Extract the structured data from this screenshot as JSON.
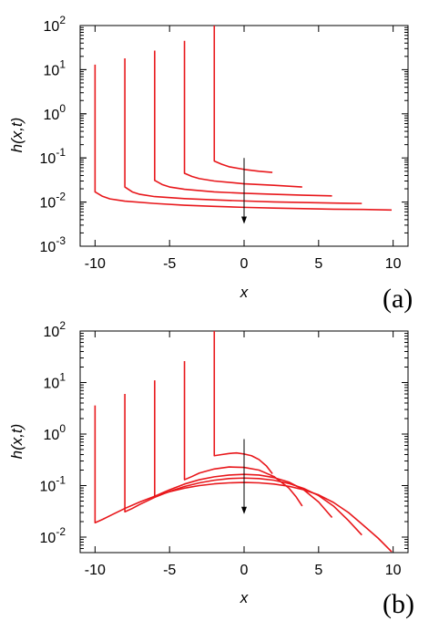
{
  "chart_data": [
    {
      "type": "line",
      "panel_label": "(a)",
      "xlabel": "x",
      "ylabel": "h(x,t)",
      "yscale": "log",
      "xlim": [
        -11,
        11
      ],
      "ylim": [
        0.001,
        100
      ],
      "xticks": [
        {
          "value": -10,
          "label": "-10"
        },
        {
          "value": -5,
          "label": "-5"
        },
        {
          "value": 0,
          "label": "0"
        },
        {
          "value": 5,
          "label": "5"
        },
        {
          "value": 10,
          "label": "10"
        }
      ],
      "yticks": [
        {
          "value": 100,
          "base": "10",
          "exp": "2"
        },
        {
          "value": 10,
          "base": "10",
          "exp": "1"
        },
        {
          "value": 1,
          "base": "10",
          "exp": "0"
        },
        {
          "value": 0.1,
          "base": "10",
          "exp": "-1"
        },
        {
          "value": 0.01,
          "base": "10",
          "exp": "-2"
        },
        {
          "value": 0.001,
          "base": "10",
          "exp": "-3"
        }
      ],
      "line_color": "#e8171b",
      "arrow": {
        "x": 0,
        "from": 0.1,
        "to": 0.0032
      },
      "series": [
        {
          "points": [
            [
              -2,
              100
            ],
            [
              -2,
              0.085
            ],
            [
              -1.5,
              0.072
            ],
            [
              -1,
              0.063
            ],
            [
              0,
              0.055
            ],
            [
              1,
              0.05
            ],
            [
              1.9,
              0.047
            ]
          ]
        },
        {
          "points": [
            [
              -4,
              45
            ],
            [
              -4,
              0.045
            ],
            [
              -3.5,
              0.038
            ],
            [
              -3,
              0.034
            ],
            [
              -2,
              0.03
            ],
            [
              0,
              0.026
            ],
            [
              2,
              0.024
            ],
            [
              3.9,
              0.022
            ]
          ]
        },
        {
          "points": [
            [
              -6,
              27
            ],
            [
              -6,
              0.031
            ],
            [
              -5.5,
              0.025
            ],
            [
              -5,
              0.022
            ],
            [
              -4,
              0.0195
            ],
            [
              -2,
              0.017
            ],
            [
              0,
              0.0158
            ],
            [
              2,
              0.015
            ],
            [
              4,
              0.0143
            ],
            [
              5.9,
              0.0138
            ]
          ]
        },
        {
          "points": [
            [
              -8,
              18
            ],
            [
              -8,
              0.022
            ],
            [
              -7.5,
              0.017
            ],
            [
              -7,
              0.015
            ],
            [
              -6,
              0.0133
            ],
            [
              -4,
              0.012
            ],
            [
              -2,
              0.0112
            ],
            [
              0,
              0.0106
            ],
            [
              2,
              0.0101
            ],
            [
              4,
              0.0098
            ],
            [
              6,
              0.0095
            ],
            [
              7.9,
              0.0093
            ]
          ]
        },
        {
          "points": [
            [
              -10,
              13
            ],
            [
              -10,
              0.017
            ],
            [
              -9.5,
              0.0135
            ],
            [
              -9,
              0.0118
            ],
            [
              -8,
              0.0105
            ],
            [
              -6,
              0.0093
            ],
            [
              -4,
              0.0085
            ],
            [
              -2,
              0.008
            ],
            [
              0,
              0.0076
            ],
            [
              2,
              0.0073
            ],
            [
              4,
              0.0071
            ],
            [
              6,
              0.0069
            ],
            [
              8,
              0.0068
            ],
            [
              9.9,
              0.0066
            ]
          ]
        }
      ]
    },
    {
      "type": "line",
      "panel_label": "(b)",
      "xlabel": "x",
      "ylabel": "h(x,t)",
      "yscale": "log",
      "xlim": [
        -11,
        11
      ],
      "ylim": [
        0.005,
        100
      ],
      "xticks": [
        {
          "value": -10,
          "label": "-10"
        },
        {
          "value": -5,
          "label": "-5"
        },
        {
          "value": 0,
          "label": "0"
        },
        {
          "value": 5,
          "label": "5"
        },
        {
          "value": 10,
          "label": "10"
        }
      ],
      "yticks": [
        {
          "value": 100,
          "base": "10",
          "exp": "2"
        },
        {
          "value": 10,
          "base": "10",
          "exp": "1"
        },
        {
          "value": 1,
          "base": "10",
          "exp": "0"
        },
        {
          "value": 0.1,
          "base": "10",
          "exp": "-1"
        },
        {
          "value": 0.01,
          "base": "10",
          "exp": "-2"
        }
      ],
      "line_color": "#e8171b",
      "arrow": {
        "x": 0,
        "from": 0.8,
        "to": 0.028
      },
      "series": [
        {
          "points": [
            [
              -2,
              100
            ],
            [
              -2,
              0.38
            ],
            [
              -1.5,
              0.4
            ],
            [
              -1,
              0.42
            ],
            [
              -0.5,
              0.43
            ],
            [
              0,
              0.41
            ],
            [
              0.5,
              0.38
            ],
            [
              1,
              0.32
            ],
            [
              1.5,
              0.24
            ],
            [
              1.9,
              0.17
            ]
          ]
        },
        {
          "points": [
            [
              -4,
              26
            ],
            [
              -4,
              0.13
            ],
            [
              -3.5,
              0.15
            ],
            [
              -3,
              0.175
            ],
            [
              -2,
              0.21
            ],
            [
              -1,
              0.23
            ],
            [
              0,
              0.225
            ],
            [
              1,
              0.2
            ],
            [
              2,
              0.15
            ],
            [
              3,
              0.09
            ],
            [
              3.5,
              0.06
            ],
            [
              3.9,
              0.04
            ]
          ]
        },
        {
          "points": [
            [
              -6,
              11
            ],
            [
              -6,
              0.062
            ],
            [
              -5.5,
              0.072
            ],
            [
              -5,
              0.083
            ],
            [
              -4,
              0.107
            ],
            [
              -3,
              0.13
            ],
            [
              -2,
              0.148
            ],
            [
              -1,
              0.16
            ],
            [
              0,
              0.165
            ],
            [
              1,
              0.16
            ],
            [
              2,
              0.143
            ],
            [
              3,
              0.117
            ],
            [
              4,
              0.083
            ],
            [
              5,
              0.048
            ],
            [
              5.9,
              0.024
            ]
          ]
        },
        {
          "points": [
            [
              -8,
              6
            ],
            [
              -8,
              0.031
            ],
            [
              -7.5,
              0.036
            ],
            [
              -7,
              0.043
            ],
            [
              -6,
              0.059
            ],
            [
              -5,
              0.077
            ],
            [
              -4,
              0.096
            ],
            [
              -3,
              0.113
            ],
            [
              -2,
              0.127
            ],
            [
              -1,
              0.137
            ],
            [
              0,
              0.14
            ],
            [
              1,
              0.137
            ],
            [
              2,
              0.127
            ],
            [
              3,
              0.11
            ],
            [
              4,
              0.088
            ],
            [
              5,
              0.064
            ],
            [
              6,
              0.04
            ],
            [
              7,
              0.021
            ],
            [
              7.9,
              0.011
            ]
          ]
        },
        {
          "points": [
            [
              -10,
              3.6
            ],
            [
              -10,
              0.019
            ],
            [
              -9.5,
              0.022
            ],
            [
              -9,
              0.026
            ],
            [
              -8,
              0.036
            ],
            [
              -7,
              0.048
            ],
            [
              -6,
              0.062
            ],
            [
              -5,
              0.076
            ],
            [
              -4,
              0.089
            ],
            [
              -3,
              0.1
            ],
            [
              -2,
              0.108
            ],
            [
              -1,
              0.113
            ],
            [
              0,
              0.115
            ],
            [
              1,
              0.113
            ],
            [
              2,
              0.107
            ],
            [
              3,
              0.097
            ],
            [
              4,
              0.083
            ],
            [
              5,
              0.066
            ],
            [
              6,
              0.047
            ],
            [
              7,
              0.03
            ],
            [
              8,
              0.017
            ],
            [
              9,
              0.0095
            ],
            [
              9.9,
              0.0052
            ]
          ]
        }
      ]
    }
  ]
}
